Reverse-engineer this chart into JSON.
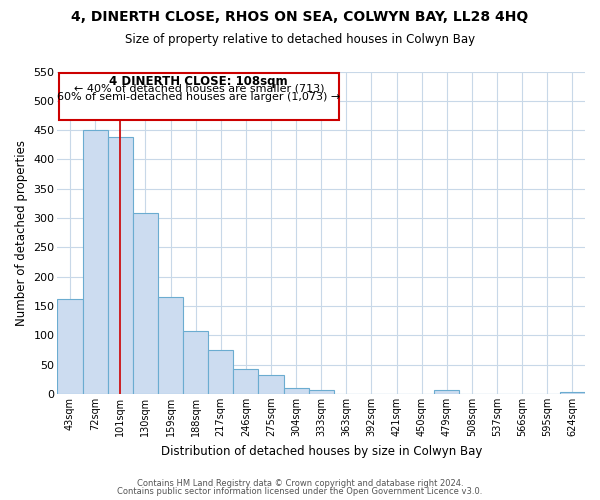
{
  "title": "4, DINERTH CLOSE, RHOS ON SEA, COLWYN BAY, LL28 4HQ",
  "subtitle": "Size of property relative to detached houses in Colwyn Bay",
  "xlabel": "Distribution of detached houses by size in Colwyn Bay",
  "ylabel": "Number of detached properties",
  "bar_labels": [
    "43sqm",
    "72sqm",
    "101sqm",
    "130sqm",
    "159sqm",
    "188sqm",
    "217sqm",
    "246sqm",
    "275sqm",
    "304sqm",
    "333sqm",
    "363sqm",
    "392sqm",
    "421sqm",
    "450sqm",
    "479sqm",
    "508sqm",
    "537sqm",
    "566sqm",
    "595sqm",
    "624sqm"
  ],
  "bar_heights": [
    162,
    450,
    438,
    308,
    165,
    108,
    75,
    43,
    33,
    10,
    7,
    0,
    0,
    0,
    0,
    6,
    0,
    0,
    0,
    0,
    3
  ],
  "bar_color_fill": "#ccdcf0",
  "bar_color_edge": "#6bacd0",
  "vline_x_idx": 2,
  "vline_color": "#cc0000",
  "annotation_title": "4 DINERTH CLOSE: 108sqm",
  "annotation_line1": "← 40% of detached houses are smaller (713)",
  "annotation_line2": "60% of semi-detached houses are larger (1,073) →",
  "ylim": [
    0,
    550
  ],
  "yticks": [
    0,
    50,
    100,
    150,
    200,
    250,
    300,
    350,
    400,
    450,
    500,
    550
  ],
  "footer1": "Contains HM Land Registry data © Crown copyright and database right 2024.",
  "footer2": "Contains public sector information licensed under the Open Government Licence v3.0.",
  "bg_color": "#ffffff",
  "grid_color": "#c8d8e8",
  "annotation_box_edge": "#cc0000",
  "figwidth": 6.0,
  "figheight": 5.0,
  "dpi": 100
}
